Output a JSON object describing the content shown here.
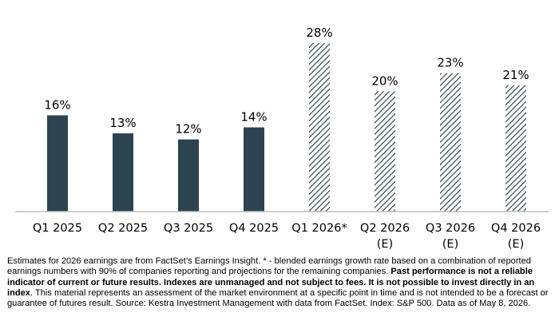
{
  "chart_data": {
    "type": "bar",
    "categories": [
      [
        "Q1 2025"
      ],
      [
        "Q2 2025"
      ],
      [
        "Q3 2025"
      ],
      [
        "Q4 2025"
      ],
      [
        "Q1 2026*"
      ],
      [
        "Q2 2026",
        "(E)"
      ],
      [
        "Q3 2026",
        "(E)"
      ],
      [
        "Q4 2026",
        "(E)"
      ]
    ],
    "values": [
      16,
      13,
      12,
      14,
      28,
      20,
      23,
      21
    ],
    "value_labels": [
      "16%",
      "13%",
      "12%",
      "14%",
      "28%",
      "20%",
      "23%",
      "21%"
    ],
    "bar_styles": [
      "solid",
      "solid",
      "solid",
      "solid",
      "hatched",
      "hatched",
      "hatched",
      "hatched"
    ],
    "title": "",
    "xlabel": "",
    "ylabel": "",
    "ylim": [
      0,
      28
    ],
    "grid": false,
    "legend": "none",
    "colors": {
      "solid_bar": "#2b4450",
      "hatch_stroke": "#3b5360",
      "axis": "#bfbfbf"
    }
  },
  "footnote": {
    "part1": "Estimates for 2026 earnings are from FactSet’s Earnings Insight. * - blended earnings growth rate based on a combination of reported earnings numbers with 90% of companies reporting and projections for the remaining companies. ",
    "part2_bold": "Past performance is not a reliable indicator of current or future results. Indexes are unmanaged and not subject to fees. It is not possible to invest directly in an index",
    "part3": ". This material represents an assessment of the market environment at a specific point in time and is not intended to be a forecast or guarantee of futures result. Source: Kestra Investment Management with data from FactSet. Index: S&P 500. Data as of May 8, 2026."
  }
}
